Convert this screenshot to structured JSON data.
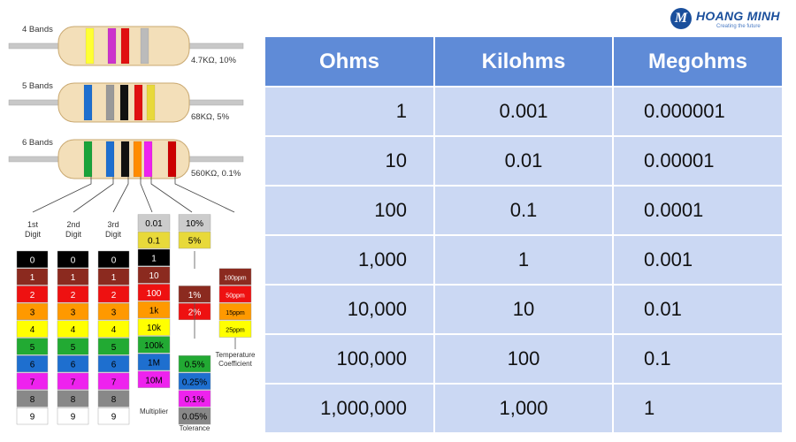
{
  "logo": {
    "name": "HOANG MINH",
    "tagline": "Creating the future"
  },
  "resistors": [
    {
      "label": "4 Bands",
      "value": "4.7KΩ, 10%",
      "bands": [
        "#ffff33",
        "#cc33cc",
        "#e01010",
        "#bbbbbb"
      ]
    },
    {
      "label": "5 Bands",
      "value": "68KΩ, 5%",
      "bands": [
        "#1e6fcf",
        "#999999",
        "#111111",
        "#e01010",
        "#e8d93a"
      ]
    },
    {
      "label": "6 Bands",
      "value": "560KΩ, 0.1%",
      "bands": [
        "#1aa33a",
        "#1e6fcf",
        "#111111",
        "#ff8c00",
        "#ee22ee",
        "#cc0000"
      ]
    }
  ],
  "columns": {
    "digit1": {
      "heading": "1st\nDigit",
      "line1": "1st",
      "line2": "Digit"
    },
    "digit2": {
      "line1": "2nd",
      "line2": "Digit"
    },
    "digit3": {
      "line1": "3rd",
      "line2": "Digit"
    },
    "multiplier_label": "Multiplier",
    "tolerance_label": "Tolerance",
    "tempco_label_1": "Temperature",
    "tempco_label_2": "Coefficient"
  },
  "digit_rows": [
    {
      "v": "0",
      "color": "#000000",
      "text": "#ffffff"
    },
    {
      "v": "1",
      "color": "#8b2a1f",
      "text": "#ffffff"
    },
    {
      "v": "2",
      "color": "#ee1111",
      "text": "#ffffff"
    },
    {
      "v": "3",
      "color": "#ff9900",
      "text": "#000000"
    },
    {
      "v": "4",
      "color": "#ffff00",
      "text": "#000000"
    },
    {
      "v": "5",
      "color": "#22aa33",
      "text": "#000000"
    },
    {
      "v": "6",
      "color": "#1e6fcf",
      "text": "#000000"
    },
    {
      "v": "7",
      "color": "#ee22ee",
      "text": "#000000"
    },
    {
      "v": "8",
      "color": "#888888",
      "text": "#000000"
    },
    {
      "v": "9",
      "color": "#ffffff",
      "text": "#000000"
    }
  ],
  "multiplier_rows": [
    {
      "v": "0.01",
      "color": "#cccccc",
      "text": "#000000"
    },
    {
      "v": "0.1",
      "color": "#e8d93a",
      "text": "#000000"
    },
    {
      "v": "1",
      "color": "#000000",
      "text": "#ffffff"
    },
    {
      "v": "10",
      "color": "#8b2a1f",
      "text": "#ffffff"
    },
    {
      "v": "100",
      "color": "#ee1111",
      "text": "#ffffff"
    },
    {
      "v": "1k",
      "color": "#ff9900",
      "text": "#000000"
    },
    {
      "v": "10k",
      "color": "#ffff00",
      "text": "#000000"
    },
    {
      "v": "100k",
      "color": "#22aa33",
      "text": "#000000"
    },
    {
      "v": "1M",
      "color": "#1e6fcf",
      "text": "#000000"
    },
    {
      "v": "10M",
      "color": "#ee22ee",
      "text": "#000000"
    }
  ],
  "tolerance_rows": [
    {
      "v": "10%",
      "color": "#cccccc",
      "text": "#000000",
      "slot": 0
    },
    {
      "v": "5%",
      "color": "#e8d93a",
      "text": "#000000",
      "slot": 1
    },
    {
      "v": "1%",
      "color": "#8b2a1f",
      "text": "#ffffff",
      "slot": 3
    },
    {
      "v": "2%",
      "color": "#ee1111",
      "text": "#ffffff",
      "slot": 4
    },
    {
      "v": "0.5%",
      "color": "#22aa33",
      "text": "#000000",
      "slot": 7
    },
    {
      "v": "0.25%",
      "color": "#1e6fcf",
      "text": "#000000",
      "slot": 8
    },
    {
      "v": "0.1%",
      "color": "#ee22ee",
      "text": "#000000",
      "slot": 9
    },
    {
      "v": "0.05%",
      "color": "#888888",
      "text": "#000000",
      "slot": 10
    }
  ],
  "tempco_rows": [
    {
      "v": "100ppm",
      "color": "#8b2a1f",
      "text": "#ffffff"
    },
    {
      "v": "50ppm",
      "color": "#ee1111",
      "text": "#ffffff"
    },
    {
      "v": "15ppm",
      "color": "#ff9900",
      "text": "#000000"
    },
    {
      "v": "25ppm",
      "color": "#ffff00",
      "text": "#000000"
    }
  ],
  "table": {
    "headers": [
      "Ohms",
      "Kilohms",
      "Megohms"
    ],
    "rows": [
      [
        "1",
        "0.001",
        "0.000001"
      ],
      [
        "10",
        "0.01",
        "0.00001"
      ],
      [
        "100",
        "0.1",
        "0.0001"
      ],
      [
        "1,000",
        "1",
        "0.001"
      ],
      [
        "10,000",
        "10",
        "0.01"
      ],
      [
        "100,000",
        "100",
        "0.1"
      ],
      [
        "1,000,000",
        "1,000",
        "1"
      ]
    ]
  }
}
